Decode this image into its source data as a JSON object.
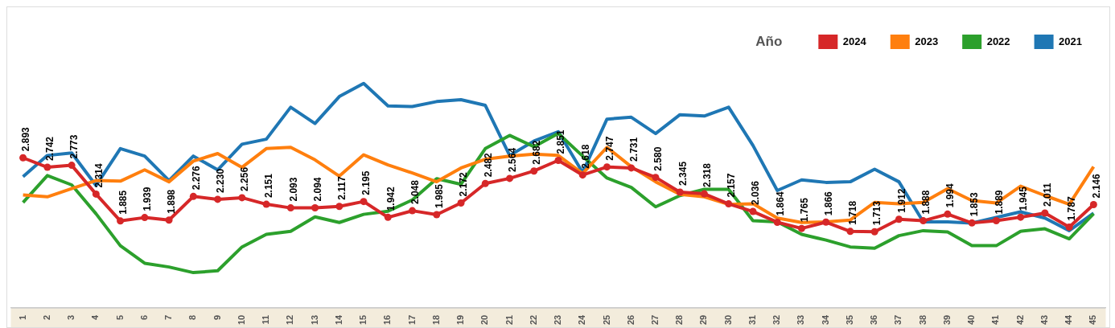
{
  "chart_data": {
    "type": "line",
    "legend_title": "Año",
    "legend": "top right",
    "grid": false,
    "tick_labels": "x",
    "categories": [
      "1",
      "2",
      "3",
      "4",
      "5",
      "6",
      "7",
      "8",
      "9",
      "10",
      "11",
      "12",
      "13",
      "14",
      "15",
      "16",
      "17",
      "18",
      "19",
      "20",
      "21",
      "22",
      "23",
      "24",
      "25",
      "26",
      "27",
      "28",
      "29",
      "30",
      "31",
      "32",
      "33",
      "34",
      "35",
      "36",
      "37",
      "38",
      "39",
      "40",
      "41",
      "42",
      "43",
      "44",
      "45"
    ],
    "series": [
      {
        "name": "2024",
        "color": "#d62728",
        "marker": "circle",
        "values": [
          2.893,
          2.742,
          2.773,
          2.314,
          1.885,
          1.939,
          1.898,
          2.276,
          2.23,
          2.256,
          2.151,
          2.093,
          2.094,
          2.117,
          2.195,
          1.942,
          2.048,
          1.985,
          2.172,
          2.482,
          2.564,
          2.682,
          2.851,
          2.618,
          2.747,
          2.731,
          2.58,
          2.345,
          2.318,
          2.157,
          2.036,
          1.864,
          1.765,
          1.866,
          1.718,
          1.713,
          1.912,
          1.888,
          1.994,
          1.853,
          1.889,
          1.945,
          2.011,
          1.787,
          2.146
        ],
        "value_labels": [
          "2.893",
          "2.742",
          "2.773",
          "2.314",
          "1.885",
          "1.939",
          "1.898",
          "2.276",
          "2.230",
          "2.256",
          "2.151",
          "2.093",
          "2.094",
          "2.117",
          "2.195",
          "1.942",
          "2.048",
          "1.985",
          "2.172",
          "2.482",
          "2.564",
          "2.682",
          "2.851",
          "2.618",
          "2.747",
          "2.731",
          "2.580",
          "2.345",
          "2.318",
          "2.157",
          "2.036",
          "1.864",
          "1.765",
          "1.866",
          "1.718",
          "1.713",
          "1.912",
          "1.888",
          "1.994",
          "1.853",
          "1.889",
          "1.945",
          "2.011",
          "1.787",
          "2.146"
        ]
      },
      {
        "name": "2023",
        "color": "#ff7f0e",
        "marker": "none",
        "values": [
          2.3,
          2.27,
          2.4,
          2.53,
          2.52,
          2.7,
          2.51,
          2.84,
          2.96,
          2.74,
          3.04,
          3.06,
          2.86,
          2.6,
          2.94,
          2.78,
          2.65,
          2.51,
          2.73,
          2.87,
          2.92,
          2.95,
          2.93,
          2.64,
          3.06,
          2.75,
          2.51,
          2.31,
          2.27,
          2.15,
          2.16,
          1.93,
          1.86,
          1.87,
          1.9,
          2.18,
          2.16,
          2.18,
          2.4,
          2.21,
          2.17,
          2.44,
          2.29,
          2.15,
          2.75
        ]
      },
      {
        "name": "2022",
        "color": "#2ca02c",
        "marker": "none",
        "values": [
          2.18,
          2.61,
          2.46,
          2.0,
          1.49,
          1.21,
          1.15,
          1.06,
          1.09,
          1.47,
          1.67,
          1.72,
          1.95,
          1.86,
          1.99,
          2.04,
          2.22,
          2.56,
          2.47,
          3.04,
          3.25,
          3.07,
          3.28,
          2.92,
          2.57,
          2.42,
          2.11,
          2.29,
          2.39,
          2.39,
          1.89,
          1.87,
          1.67,
          1.58,
          1.47,
          1.45,
          1.65,
          1.73,
          1.71,
          1.49,
          1.49,
          1.72,
          1.76,
          1.6,
          2.0
        ]
      },
      {
        "name": "2021",
        "color": "#1f77b4",
        "marker": "none",
        "values": [
          2.59,
          2.93,
          2.97,
          2.45,
          3.04,
          2.92,
          2.53,
          2.92,
          2.7,
          3.11,
          3.19,
          3.7,
          3.44,
          3.87,
          4.08,
          3.72,
          3.71,
          3.79,
          3.82,
          3.73,
          2.93,
          3.16,
          3.31,
          2.66,
          3.51,
          3.54,
          3.28,
          3.58,
          3.56,
          3.7,
          3.09,
          2.37,
          2.54,
          2.5,
          2.51,
          2.71,
          2.51,
          1.87,
          1.87,
          1.85,
          1.94,
          2.03,
          1.93,
          1.73,
          2.01
        ]
      }
    ]
  }
}
